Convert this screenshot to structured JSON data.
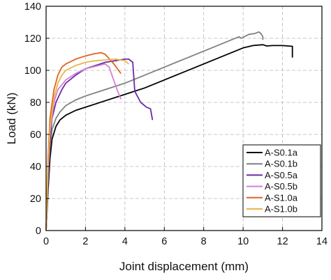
{
  "chart_data": {
    "type": "line",
    "title": "",
    "xlabel": "Joint displacement (mm)",
    "ylabel": "Load (kN)",
    "xlim": [
      0,
      14
    ],
    "ylim": [
      0,
      140
    ],
    "xticks": [
      0,
      2,
      4,
      6,
      8,
      10,
      12,
      14
    ],
    "yticks": [
      0,
      20,
      40,
      60,
      80,
      100,
      120,
      140
    ],
    "grid": "both dashed",
    "legend_position": "bottom-right",
    "series": [
      {
        "name": "A-S0.1a",
        "color": "#000000",
        "points": [
          [
            0,
            0
          ],
          [
            0.1,
            25
          ],
          [
            0.2,
            45
          ],
          [
            0.3,
            57
          ],
          [
            0.5,
            65
          ],
          [
            0.7,
            69
          ],
          [
            1.0,
            72
          ],
          [
            1.5,
            75
          ],
          [
            2,
            77
          ],
          [
            3,
            81
          ],
          [
            4,
            85
          ],
          [
            5,
            89
          ],
          [
            6,
            94
          ],
          [
            7,
            99
          ],
          [
            8,
            104
          ],
          [
            9,
            109
          ],
          [
            10,
            114
          ],
          [
            10.5,
            115.5
          ],
          [
            11,
            116
          ],
          [
            11.2,
            115.2
          ],
          [
            11.5,
            115.5
          ],
          [
            12,
            115.5
          ],
          [
            12.5,
            115
          ],
          [
            12.5,
            108
          ]
        ]
      },
      {
        "name": "A-S0.1b",
        "color": "#808080",
        "points": [
          [
            0,
            0
          ],
          [
            0.1,
            30
          ],
          [
            0.2,
            52
          ],
          [
            0.3,
            63
          ],
          [
            0.5,
            70
          ],
          [
            0.7,
            74
          ],
          [
            1.0,
            78
          ],
          [
            1.5,
            81.5
          ],
          [
            2,
            84
          ],
          [
            3,
            88
          ],
          [
            4,
            92
          ],
          [
            5,
            97
          ],
          [
            6,
            102
          ],
          [
            7,
            107
          ],
          [
            8,
            112
          ],
          [
            9,
            117
          ],
          [
            9.8,
            121
          ],
          [
            9.9,
            120
          ],
          [
            10.3,
            122.5
          ],
          [
            10.6,
            123
          ],
          [
            10.8,
            124
          ],
          [
            10.9,
            123
          ],
          [
            11.0,
            121
          ],
          [
            11.0,
            119
          ]
        ]
      },
      {
        "name": "A-S0.5a",
        "color": "#6a2ba3",
        "points": [
          [
            0,
            0
          ],
          [
            0.1,
            32
          ],
          [
            0.2,
            56
          ],
          [
            0.3,
            70
          ],
          [
            0.5,
            80
          ],
          [
            0.8,
            88
          ],
          [
            1.0,
            92
          ],
          [
            1.5,
            97
          ],
          [
            2,
            101
          ],
          [
            2.5,
            103
          ],
          [
            3,
            105
          ],
          [
            3.5,
            106
          ],
          [
            4,
            107
          ],
          [
            4.2,
            107
          ],
          [
            4.4,
            105
          ],
          [
            4.5,
            87
          ],
          [
            4.8,
            80
          ],
          [
            5.1,
            77
          ],
          [
            5.3,
            76
          ],
          [
            5.4,
            69
          ]
        ]
      },
      {
        "name": "A-S0.5b",
        "color": "#d47fd4",
        "points": [
          [
            0,
            0
          ],
          [
            0.1,
            40
          ],
          [
            0.2,
            62
          ],
          [
            0.4,
            80
          ],
          [
            0.6,
            88
          ],
          [
            1.0,
            94
          ],
          [
            1.5,
            98
          ],
          [
            2,
            101
          ],
          [
            2.5,
            102.5
          ],
          [
            3,
            104
          ],
          [
            3.2,
            102
          ],
          [
            3.4,
            95
          ],
          [
            3.6,
            88
          ],
          [
            3.8,
            82
          ]
        ]
      },
      {
        "name": "A-S1.0a",
        "color": "#e0631c",
        "points": [
          [
            0,
            0
          ],
          [
            0.1,
            45
          ],
          [
            0.2,
            70
          ],
          [
            0.4,
            88
          ],
          [
            0.6,
            97
          ],
          [
            0.8,
            102
          ],
          [
            1.0,
            104
          ],
          [
            1.5,
            107
          ],
          [
            2,
            109
          ],
          [
            2.5,
            110.5
          ],
          [
            2.8,
            111
          ],
          [
            3.0,
            110
          ],
          [
            3.3,
            106
          ],
          [
            3.5,
            103
          ],
          [
            3.8,
            98
          ]
        ]
      },
      {
        "name": "A-S1.0b",
        "color": "#e8b548",
        "points": [
          [
            0,
            0
          ],
          [
            0.1,
            40
          ],
          [
            0.2,
            64
          ],
          [
            0.4,
            83
          ],
          [
            0.6,
            92
          ],
          [
            0.8,
            97
          ],
          [
            1.0,
            100
          ],
          [
            1.5,
            103
          ],
          [
            2,
            105
          ],
          [
            2.5,
            106
          ],
          [
            3,
            106.5
          ],
          [
            3.5,
            107
          ],
          [
            4.0,
            106
          ],
          [
            4.2,
            104
          ]
        ]
      }
    ]
  }
}
